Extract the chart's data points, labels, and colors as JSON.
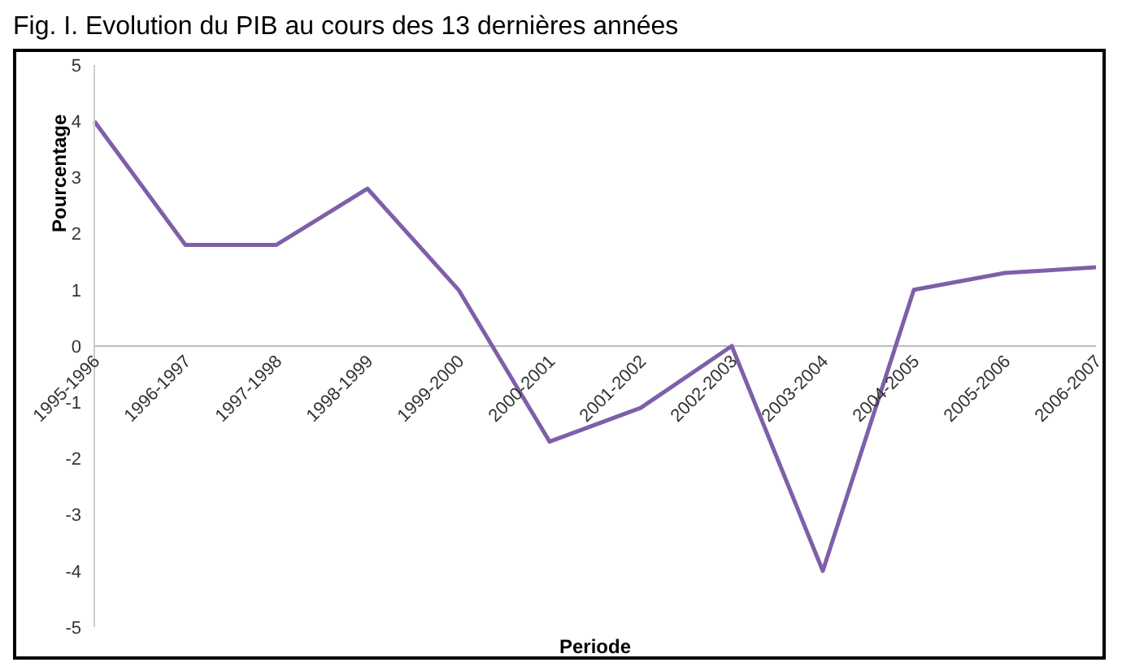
{
  "chart_data": {
    "type": "line",
    "title": "Fig. I. Evolution du PIB au cours des 13 dernières années",
    "xlabel": "Periode",
    "ylabel": "Pourcentage",
    "categories": [
      "1995-1996",
      "1996-1997",
      "1997-1998",
      "1998-1999",
      "1999-2000",
      "2000-2001",
      "2001-2002",
      "2002-2003",
      "2003-2004",
      "2004-2005",
      "2005-2006",
      "2006-2007"
    ],
    "series": [
      {
        "color": "#7f5fa8",
        "values": [
          4,
          1.8,
          1.8,
          2.8,
          1,
          -1.7,
          -1.1,
          0,
          -4,
          1,
          1.3,
          1.4
        ]
      }
    ],
    "ylim": [
      -5,
      5
    ],
    "yticks": [
      -5,
      -4,
      -3,
      -2,
      -1,
      0,
      1,
      2,
      3,
      4,
      5
    ],
    "marker": "none"
  }
}
